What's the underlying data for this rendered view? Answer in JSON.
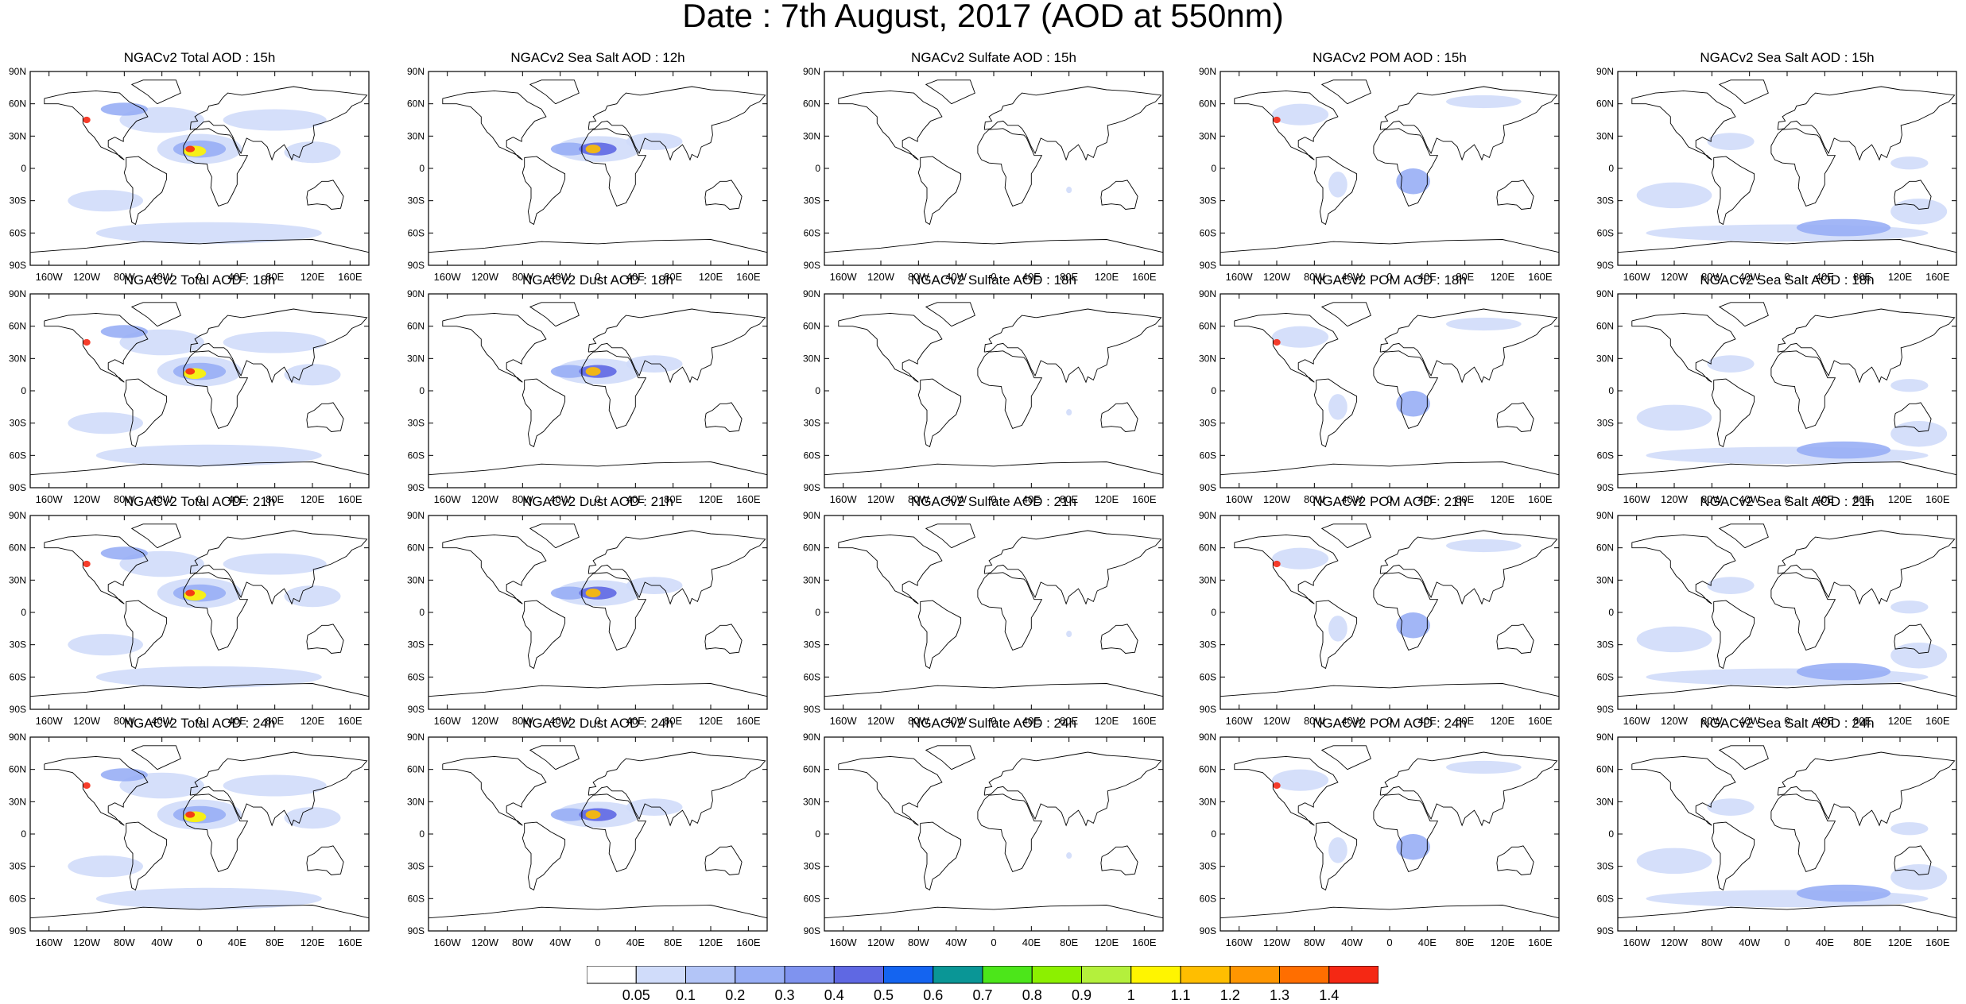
{
  "title": "Date : 7th August, 2017 (AOD at 550nm)",
  "panels": [
    [
      "NGACv2 Total AOD : 15h",
      "NGACv2 Sea Salt  AOD : 12h",
      "NGACv2 Sulfate AOD : 15h",
      "NGACv2 POM AOD : 15h",
      "NGACv2 Sea Salt AOD : 15h"
    ],
    [
      "NGACv2 Total AOD : 18h",
      "NGACv2 Dust AOD : 18h",
      "NGACv2 Sulfate AOD : 18h",
      "NGACv2 POM AOD : 18h",
      "NGACv2 Sea Salt AOD : 18h"
    ],
    [
      "NGACv2 Total AOD : 21h",
      "NGACv2 Dust AOD : 21h",
      "NGACv2 Sulfate AOD : 21h",
      "NGACv2 POM AOD : 21h",
      "NGACv2 Sea Salt AOD : 21h"
    ],
    [
      "NGACv2 Total AOD : 24h",
      "NGACv2 Dust AOD : 24h",
      "NGACv2 Sulfate AOD : 24h",
      "NGACv2 POM AOD : 24h",
      "NGACv2 Sea Salt  AOD : 24h"
    ]
  ],
  "lat_labels": [
    "90N",
    "60N",
    "30N",
    "0",
    "30S",
    "60S",
    "90S"
  ],
  "lon_labels": [
    "160W",
    "120W",
    "80W",
    "40W",
    "0",
    "40E",
    "80E",
    "120E",
    "160E"
  ],
  "colorbar": {
    "levels": [
      "0.05",
      "0.1",
      "0.2",
      "0.3",
      "0.4",
      "0.5",
      "0.6",
      "0.7",
      "0.8",
      "0.9",
      "1",
      "1.1",
      "1.2",
      "1.3",
      "1.4"
    ],
    "colors": [
      "#ffffff",
      "#d0dcfa",
      "#b3c5f7",
      "#98aef5",
      "#7f93ef",
      "#5f68e3",
      "#1464f0",
      "#0a9696",
      "#4ce61a",
      "#8cf000",
      "#b4f03c",
      "#fff500",
      "#ffbe00",
      "#ff9600",
      "#ff6e00",
      "#f52814"
    ]
  },
  "colors": {
    "land_outline": "#000000",
    "aod_low": "#d0dcfa",
    "aod_mid": "#98aef5",
    "aod_high": "#5f68e3"
  }
}
